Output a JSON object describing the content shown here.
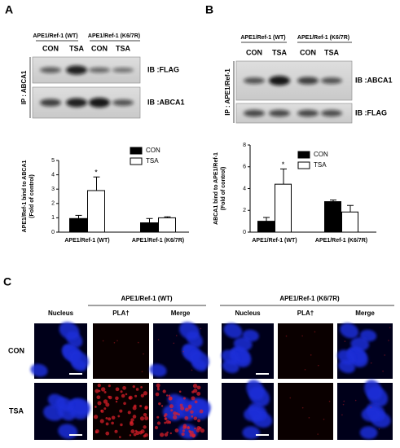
{
  "panels": {
    "a": "A",
    "b": "B",
    "c": "C"
  },
  "blots": [
    {
      "groups": [
        "APE1/Ref-1 (WT)",
        "APE1/Ref-1 (K6/7R)"
      ],
      "lanes": [
        "CON",
        "TSA",
        "CON",
        "TSA"
      ],
      "rows": [
        "IB :FLAG",
        "IB :ABCA1"
      ],
      "ip": "IP : ABCA1"
    },
    {
      "groups": [
        "APE1/Ref-1 (WT)",
        "APE1/Ref-1 (K6/7R)"
      ],
      "lanes": [
        "CON",
        "TSA",
        "CON",
        "TSA"
      ],
      "rows": [
        "IB :ABCA1",
        "IB :FLAG"
      ],
      "ip": "IP : APE1/Ref-1"
    }
  ],
  "chart_data": [
    {
      "type": "bar",
      "y_label": [
        "APE1/Ref-1 bind to ABCA1",
        "(Fold of control)"
      ],
      "categories": [
        "APE1/Ref-1 (WT)",
        "APE1/Ref-1 (K6/7R)"
      ],
      "series": [
        {
          "name": "CON",
          "color": "#000000",
          "values": [
            0.95,
            0.65
          ],
          "errors": [
            0.22,
            0.3
          ]
        },
        {
          "name": "TSA",
          "color": "#ffffff",
          "values": [
            2.9,
            1.0
          ],
          "errors": [
            0.95,
            0.07
          ]
        }
      ],
      "annotation": "*",
      "ylim": [
        0,
        5
      ],
      "yticks": [
        0,
        1,
        2,
        3,
        4,
        5
      ]
    },
    {
      "type": "bar",
      "y_label": [
        "ABCA1 bind to APE1/Ref-1",
        "(Fold of control)"
      ],
      "categories": [
        "APE1/Ref-1 (WT)",
        "APE1/Ref-1 (K6/7R)"
      ],
      "series": [
        {
          "name": "CON",
          "color": "#000000",
          "values": [
            1.0,
            2.8
          ],
          "errors": [
            0.35,
            0.15
          ]
        },
        {
          "name": "TSA",
          "color": "#ffffff",
          "values": [
            4.4,
            1.85
          ],
          "errors": [
            1.4,
            0.6
          ]
        }
      ],
      "annotation": "*",
      "ylim": [
        0,
        8
      ],
      "yticks": [
        0,
        2,
        4,
        6,
        8
      ]
    }
  ],
  "microscopy": {
    "groups": [
      "APE1/Ref-1 (WT)",
      "APE1/Ref-1 (K6/7R)"
    ],
    "columns": [
      [
        "Nucleus",
        "PLA†",
        "Merge"
      ],
      [
        "Nucleus",
        "PLA†",
        "Merge"
      ]
    ],
    "rows": [
      "CON",
      "TSA"
    ]
  }
}
